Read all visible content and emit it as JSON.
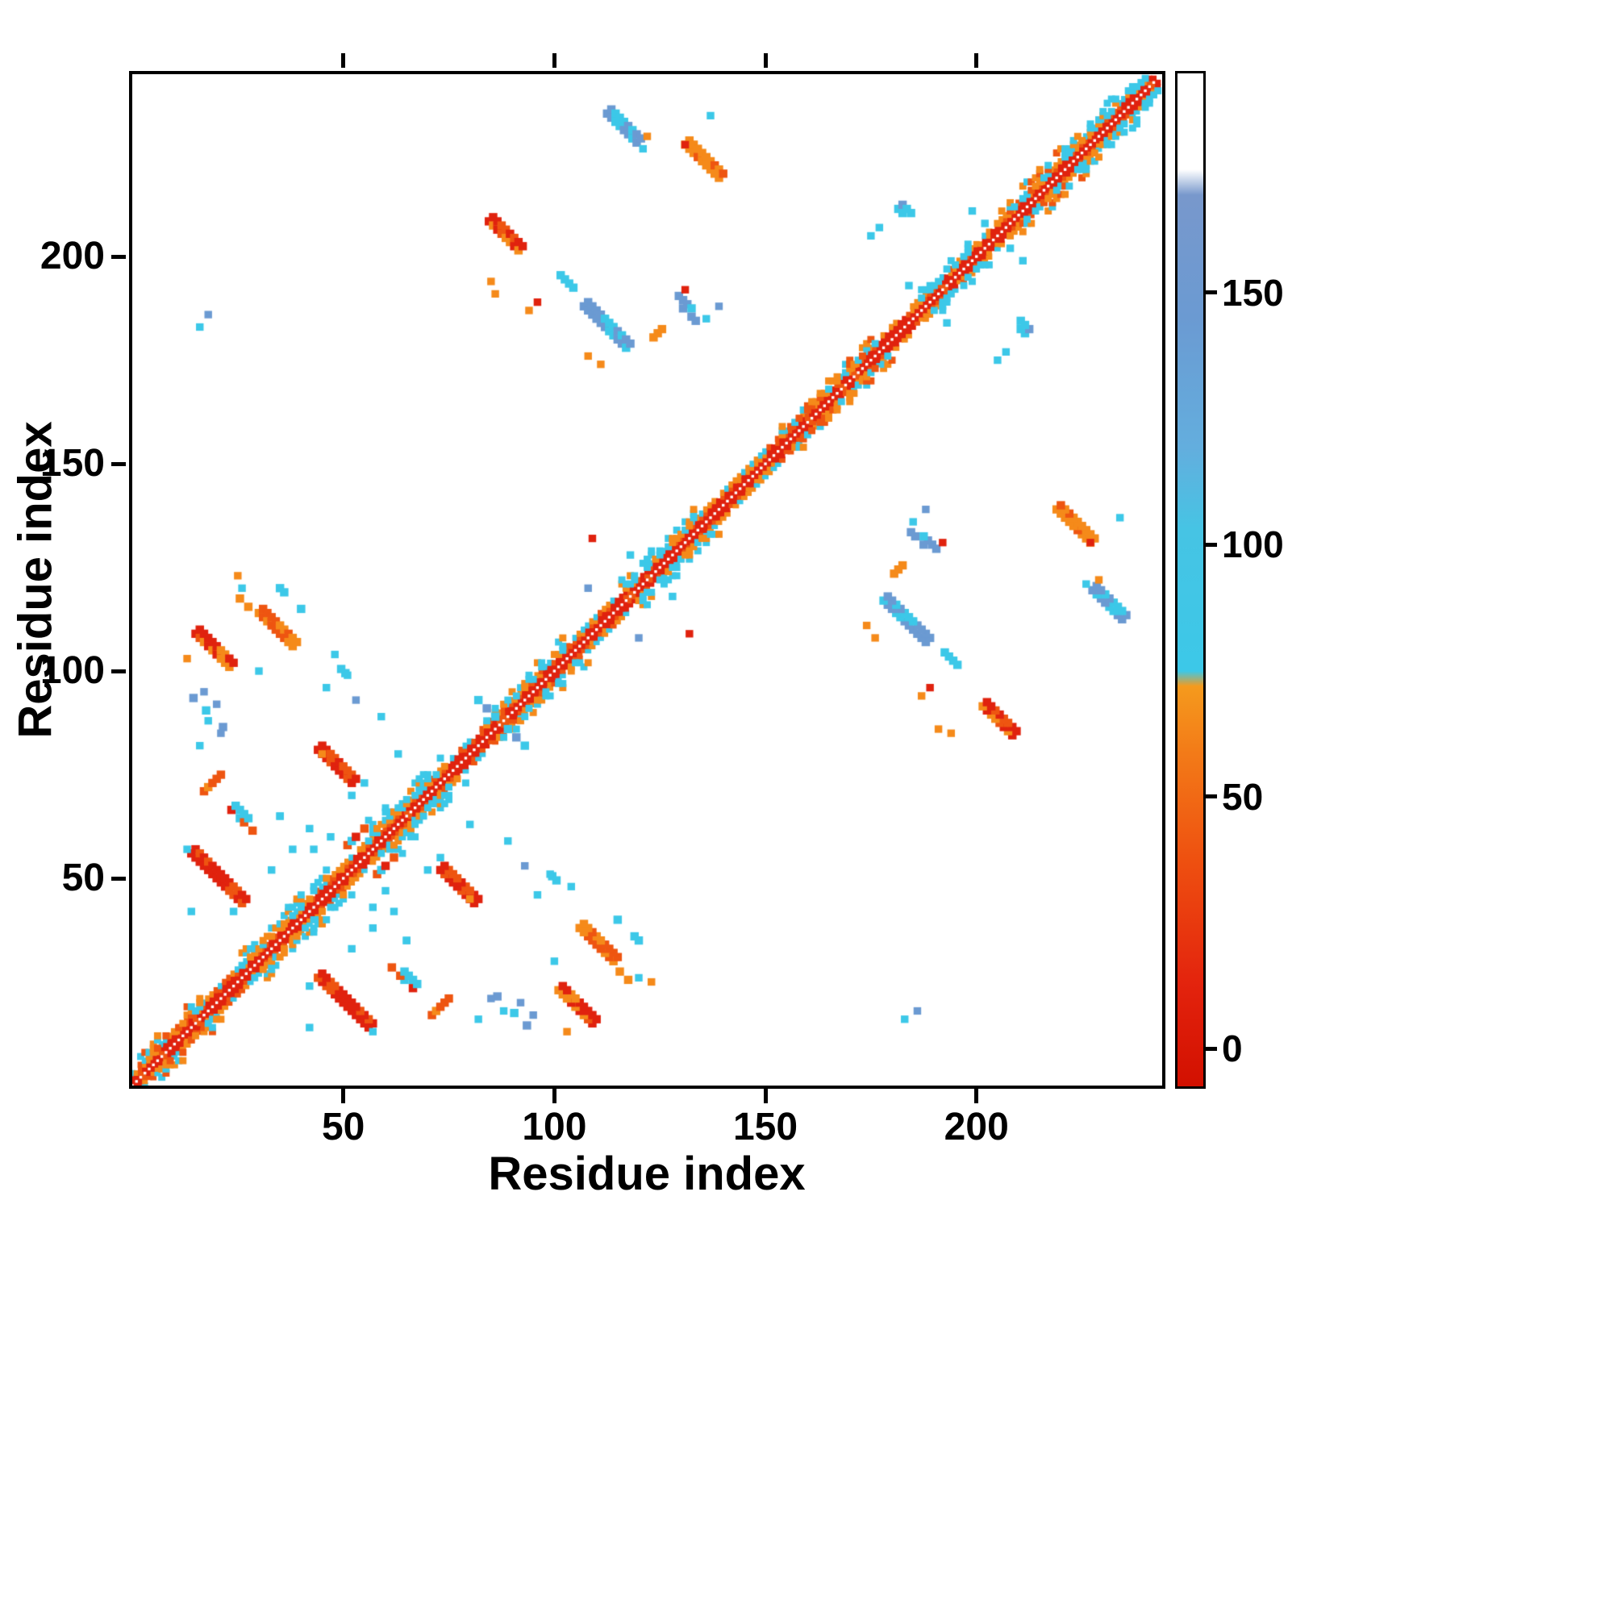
{
  "chart_data": {
    "type": "heatmap",
    "title": "",
    "xlabel": "Residue index",
    "ylabel": "Residue index",
    "x_ticks": [
      50,
      100,
      150,
      200
    ],
    "y_ticks": [
      50,
      100,
      150,
      200
    ],
    "x_range": [
      0,
      244
    ],
    "y_range": [
      0,
      244
    ],
    "grid": false,
    "background": "#ffffff",
    "frame_color": "#000000",
    "legend": "none",
    "colorbar": {
      "position": "right",
      "ticks": [
        0,
        50,
        100,
        150
      ],
      "range": [
        -8,
        194
      ],
      "stops": [
        {
          "pos": 0.0,
          "color": "#d21000"
        },
        {
          "pos": 0.1,
          "color": "#e3230d"
        },
        {
          "pos": 0.22,
          "color": "#ee4f10"
        },
        {
          "pos": 0.33,
          "color": "#f37b18"
        },
        {
          "pos": 0.395,
          "color": "#f59a1d"
        },
        {
          "pos": 0.41,
          "color": "#3cc8e8"
        },
        {
          "pos": 0.55,
          "color": "#46c4e4"
        },
        {
          "pos": 0.63,
          "color": "#63aede"
        },
        {
          "pos": 0.76,
          "color": "#6b9ad2"
        },
        {
          "pos": 0.88,
          "color": "#7898cc"
        },
        {
          "pos": 0.905,
          "color": "#ffffff"
        },
        {
          "pos": 1.0,
          "color": "#ffffff"
        }
      ]
    },
    "palette": {
      "red": "#e0220e",
      "redorange": "#ee5511",
      "orange": "#f58a1a",
      "cyan": "#3cc8e8",
      "blue": "#6b9ad2"
    },
    "matrix": {
      "symmetric": true,
      "description": "Protein residue-residue contact map: red/orange near-diagonal band with white main diagonal, cyan fringes, and symmetric off-diagonal contact clusters colored by colorbar value.",
      "wide_segments": [
        {
          "range": [
            2,
            16
          ],
          "spread": 6,
          "colors": [
            "orange",
            "redorange",
            "cyan"
          ]
        },
        {
          "range": [
            26,
            46
          ],
          "spread": 6,
          "colors": [
            "cyan",
            "cyan",
            "orange"
          ]
        },
        {
          "range": [
            56,
            74
          ],
          "spread": 8,
          "colors": [
            "cyan",
            "cyan",
            "cyan",
            "orange"
          ]
        },
        {
          "range": [
            84,
            102
          ],
          "spread": 7,
          "colors": [
            "cyan",
            "cyan",
            "orange"
          ]
        },
        {
          "range": [
            116,
            134
          ],
          "spread": 6,
          "colors": [
            "cyan",
            "orange",
            "cyan"
          ]
        },
        {
          "range": [
            154,
            176
          ],
          "spread": 5,
          "colors": [
            "orange",
            "cyan",
            "redorange"
          ]
        },
        {
          "range": [
            186,
            198
          ],
          "spread": 5,
          "colors": [
            "cyan",
            "cyan"
          ]
        },
        {
          "range": [
            204,
            222
          ],
          "spread": 6,
          "colors": [
            "orange",
            "cyan",
            "redorange"
          ]
        },
        {
          "range": [
            222,
            242
          ],
          "spread": 6,
          "colors": [
            "cyan",
            "orange",
            "cyan"
          ]
        }
      ],
      "clusters": [
        {
          "x": 20,
          "y": 50,
          "dir": "anti",
          "len": 13,
          "w": 2,
          "colors": [
            "red",
            "red",
            "red",
            "redorange"
          ]
        },
        {
          "x": 48,
          "y": 77,
          "dir": "anti",
          "len": 9,
          "w": 2,
          "colors": [
            "red",
            "red",
            "redorange"
          ]
        },
        {
          "x": 19,
          "y": 105,
          "dir": "anti",
          "len": 9,
          "w": 2,
          "colors": [
            "red",
            "red",
            "redorange",
            "orange"
          ]
        },
        {
          "x": 34,
          "y": 110,
          "dir": "anti",
          "len": 9,
          "w": 2,
          "colors": [
            "orange",
            "orange",
            "redorange"
          ]
        },
        {
          "x": 37,
          "y": 118,
          "dir": "anti",
          "len": 7,
          "w": 1,
          "sparse": true,
          "colors": [
            "cyan",
            "cyan",
            "orange"
          ]
        },
        {
          "x": 26,
          "y": 64,
          "dir": "anti",
          "len": 6,
          "w": 2,
          "sparse": true,
          "colors": [
            "red",
            "redorange",
            "cyan",
            "cyan"
          ]
        },
        {
          "x": 19,
          "y": 73,
          "dir": "para",
          "len": 5,
          "w": 1,
          "colors": [
            "redorange",
            "orange"
          ]
        },
        {
          "x": 88,
          "y": 205,
          "dir": "anti",
          "len": 8,
          "w": 2,
          "colors": [
            "orange",
            "redorange",
            "red"
          ]
        },
        {
          "x": 112,
          "y": 183,
          "dir": "anti",
          "len": 11,
          "w": 2,
          "colors": [
            "blue",
            "blue",
            "cyan"
          ]
        },
        {
          "x": 103,
          "y": 194,
          "dir": "anti",
          "len": 4,
          "w": 1,
          "colors": [
            "cyan",
            "blue"
          ]
        },
        {
          "x": 116,
          "y": 231,
          "dir": "anti",
          "len": 8,
          "w": 2,
          "colors": [
            "blue",
            "blue",
            "cyan"
          ]
        },
        {
          "x": 135,
          "y": 223,
          "dir": "anti",
          "len": 9,
          "w": 2,
          "colors": [
            "orange",
            "orange",
            "redorange"
          ]
        },
        {
          "x": 183,
          "y": 210,
          "dir": "anti",
          "len": 4,
          "w": 2,
          "sparse": true,
          "colors": [
            "cyan",
            "blue"
          ]
        },
        {
          "x": 131,
          "y": 187,
          "dir": "anti",
          "len": 8,
          "w": 2,
          "sparse": true,
          "colors": [
            "blue",
            "cyan",
            "blue"
          ]
        },
        {
          "x": 28,
          "y": 115,
          "dir": "anti",
          "len": 6,
          "w": 1,
          "sparse": true,
          "colors": [
            "cyan",
            "cyan",
            "orange"
          ]
        },
        {
          "x": 84,
          "y": 91,
          "dir": "anti",
          "len": 5,
          "w": 1,
          "sparse": true,
          "colors": [
            "blue",
            "cyan"
          ]
        },
        {
          "x": 50,
          "y": 100,
          "dir": "anti",
          "len": 6,
          "w": 1,
          "sparse": true,
          "colors": [
            "cyan"
          ]
        },
        {
          "x": 18,
          "y": 90,
          "dir": "anti",
          "len": 8,
          "w": 1,
          "sparse": true,
          "colors": [
            "blue",
            "cyan",
            "blue"
          ]
        },
        {
          "x": 53,
          "y": 60,
          "dir": "para",
          "len": 5,
          "w": 1,
          "sparse": true,
          "colors": [
            "red",
            "redorange",
            "cyan"
          ]
        },
        {
          "x": 125,
          "y": 182,
          "dir": "para",
          "len": 4,
          "w": 1,
          "sparse": true,
          "colors": [
            "orange",
            "orange",
            "red"
          ]
        },
        {
          "x": 60,
          "y": 30,
          "dir": "para",
          "len": 4,
          "w": 1,
          "sparse": true,
          "colors": [
            "cyan"
          ]
        }
      ],
      "dots": [
        {
          "x": 16,
          "y": 183,
          "c": "cyan"
        },
        {
          "x": 18,
          "y": 186,
          "c": "blue"
        },
        {
          "x": 17,
          "y": 95,
          "c": "blue"
        },
        {
          "x": 20,
          "y": 92,
          "c": "blue"
        },
        {
          "x": 18,
          "y": 88,
          "c": "cyan"
        },
        {
          "x": 21,
          "y": 85,
          "c": "blue"
        },
        {
          "x": 16,
          "y": 82,
          "c": "cyan"
        },
        {
          "x": 30,
          "y": 100,
          "c": "cyan"
        },
        {
          "x": 26,
          "y": 120,
          "c": "cyan"
        },
        {
          "x": 25,
          "y": 123,
          "c": "orange"
        },
        {
          "x": 48,
          "y": 104,
          "c": "cyan"
        },
        {
          "x": 51,
          "y": 99,
          "c": "cyan"
        },
        {
          "x": 46,
          "y": 96,
          "c": "cyan"
        },
        {
          "x": 53,
          "y": 93,
          "c": "blue"
        },
        {
          "x": 42,
          "y": 62,
          "c": "cyan"
        },
        {
          "x": 38,
          "y": 57,
          "c": "cyan"
        },
        {
          "x": 33,
          "y": 52,
          "c": "cyan"
        },
        {
          "x": 43,
          "y": 57,
          "c": "cyan"
        },
        {
          "x": 35,
          "y": 65,
          "c": "cyan"
        },
        {
          "x": 65,
          "y": 35,
          "c": "cyan"
        },
        {
          "x": 70,
          "y": 52,
          "c": "cyan"
        },
        {
          "x": 73,
          "y": 55,
          "c": "cyan"
        },
        {
          "x": 63,
          "y": 80,
          "c": "cyan"
        },
        {
          "x": 59,
          "y": 89,
          "c": "cyan"
        },
        {
          "x": 94,
          "y": 187,
          "c": "orange"
        },
        {
          "x": 96,
          "y": 189,
          "c": "red"
        },
        {
          "x": 86,
          "y": 191,
          "c": "orange"
        },
        {
          "x": 85,
          "y": 194,
          "c": "orange"
        },
        {
          "x": 109,
          "y": 132,
          "c": "red"
        },
        {
          "x": 108,
          "y": 176,
          "c": "orange"
        },
        {
          "x": 111,
          "y": 174,
          "c": "orange"
        },
        {
          "x": 122,
          "y": 229,
          "c": "orange"
        },
        {
          "x": 121,
          "y": 226,
          "c": "cyan"
        },
        {
          "x": 131,
          "y": 227,
          "c": "red"
        },
        {
          "x": 137,
          "y": 234,
          "c": "cyan"
        },
        {
          "x": 136,
          "y": 185,
          "c": "cyan"
        },
        {
          "x": 139,
          "y": 188,
          "c": "blue"
        },
        {
          "x": 131,
          "y": 192,
          "c": "red"
        },
        {
          "x": 175,
          "y": 205,
          "c": "cyan"
        },
        {
          "x": 177,
          "y": 207,
          "c": "cyan"
        },
        {
          "x": 199,
          "y": 211,
          "c": "cyan"
        },
        {
          "x": 202,
          "y": 208,
          "c": "cyan"
        },
        {
          "x": 184,
          "y": 193,
          "c": "cyan"
        },
        {
          "x": 14,
          "y": 42,
          "c": "cyan"
        },
        {
          "x": 24,
          "y": 42,
          "c": "cyan"
        },
        {
          "x": 47,
          "y": 60,
          "c": "cyan"
        },
        {
          "x": 108,
          "y": 120,
          "c": "blue"
        },
        {
          "x": 118,
          "y": 128,
          "c": "cyan"
        },
        {
          "x": 45,
          "y": 80,
          "c": "orange"
        },
        {
          "x": 57,
          "y": 13,
          "c": "cyan"
        },
        {
          "x": 103,
          "y": 13,
          "c": "orange"
        }
      ]
    }
  }
}
